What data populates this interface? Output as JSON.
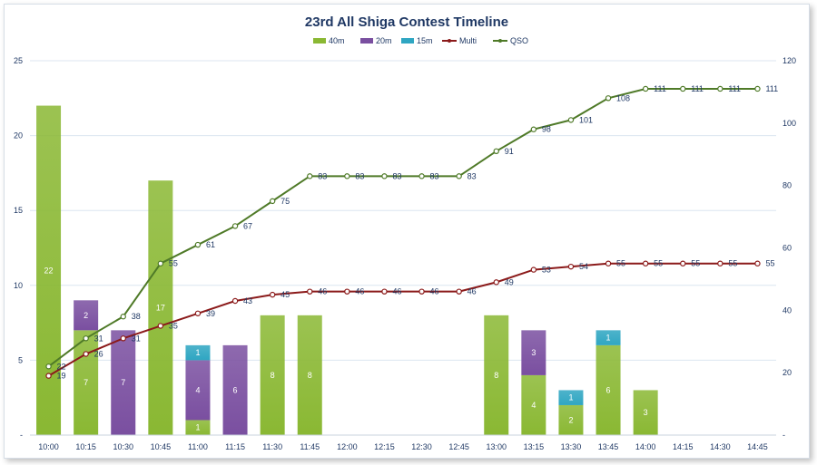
{
  "chart_data": {
    "type": "bar+line",
    "title": "23rd All Shiga Contest Timeline",
    "categories": [
      "10:00",
      "10:15",
      "10:30",
      "10:45",
      "11:00",
      "11:15",
      "11:30",
      "11:45",
      "12:00",
      "12:15",
      "12:30",
      "12:45",
      "13:00",
      "13:15",
      "13:30",
      "13:45",
      "14:00",
      "14:15",
      "14:30",
      "14:45"
    ],
    "bar_series": [
      {
        "name": "40m",
        "color": "#8ab833",
        "values": [
          22,
          7,
          0,
          17,
          1,
          0,
          8,
          8,
          0,
          0,
          0,
          0,
          8,
          4,
          2,
          6,
          3,
          0,
          0,
          0
        ]
      },
      {
        "name": "20m",
        "color": "#7a4fa0",
        "values": [
          0,
          2,
          7,
          0,
          4,
          6,
          0,
          0,
          0,
          0,
          0,
          0,
          0,
          3,
          0,
          0,
          0,
          0,
          0,
          0
        ]
      },
      {
        "name": "15m",
        "color": "#2fa6c2",
        "values": [
          0,
          0,
          0,
          0,
          1,
          0,
          0,
          0,
          0,
          0,
          0,
          0,
          0,
          0,
          1,
          1,
          0,
          0,
          0,
          0
        ]
      }
    ],
    "line_series": [
      {
        "name": "Multi",
        "color": "#8b1a1a",
        "values": [
          19,
          26,
          31,
          35,
          39,
          43,
          45,
          46,
          46,
          46,
          46,
          46,
          49,
          53,
          54,
          55,
          55,
          55,
          55,
          55
        ]
      },
      {
        "name": "QSO",
        "color": "#4f7a28",
        "values": [
          22,
          31,
          38,
          55,
          61,
          67,
          75,
          83,
          83,
          83,
          83,
          83,
          91,
          98,
          101,
          108,
          111,
          111,
          111,
          111
        ]
      }
    ],
    "y_left": {
      "min": 0,
      "max": 25,
      "ticks": [
        "-",
        "5",
        "10",
        "15",
        "20",
        "25"
      ]
    },
    "y_right": {
      "min": 0,
      "max": 120,
      "ticks": [
        "-",
        "20",
        "40",
        "60",
        "80",
        "100",
        "120"
      ]
    },
    "legend": [
      "40m",
      "20m",
      "15m",
      "Multi",
      "QSO"
    ],
    "legend_position": "top"
  }
}
